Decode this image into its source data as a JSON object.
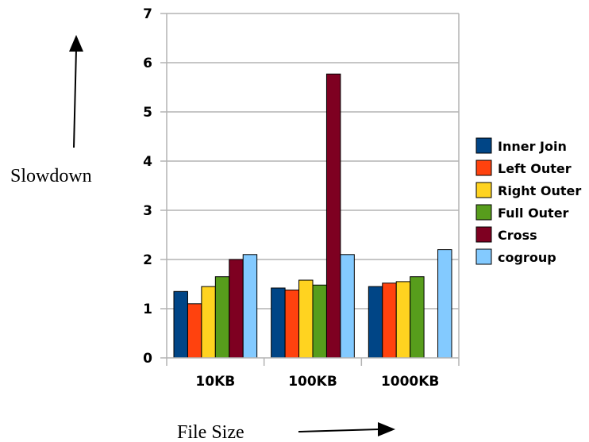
{
  "chart_data": {
    "type": "bar",
    "title": "",
    "xlabel": "File Size",
    "ylabel": "Slowdown",
    "ylim": [
      0,
      7
    ],
    "yticks": [
      "0",
      "1",
      "2",
      "3",
      "4",
      "5",
      "6",
      "7"
    ],
    "grid": true,
    "legend_position": "right",
    "categories": [
      "10KB",
      "100KB",
      "1000KB"
    ],
    "series": [
      {
        "name": "Inner Join",
        "color": "#004586",
        "values": [
          1.35,
          1.42,
          1.45
        ]
      },
      {
        "name": "Left Outer",
        "color": "#ff420e",
        "values": [
          1.1,
          1.38,
          1.52
        ]
      },
      {
        "name": "Right Outer",
        "color": "#ffd320",
        "values": [
          1.45,
          1.58,
          1.55
        ]
      },
      {
        "name": "Full Outer",
        "color": "#579d1c",
        "values": [
          1.65,
          1.48,
          1.65
        ]
      },
      {
        "name": "Cross",
        "color": "#7e0021",
        "values": [
          2.0,
          5.77,
          null
        ]
      },
      {
        "name": "cogroup",
        "color": "#83caff",
        "values": [
          2.1,
          2.1,
          2.2
        ]
      }
    ]
  }
}
